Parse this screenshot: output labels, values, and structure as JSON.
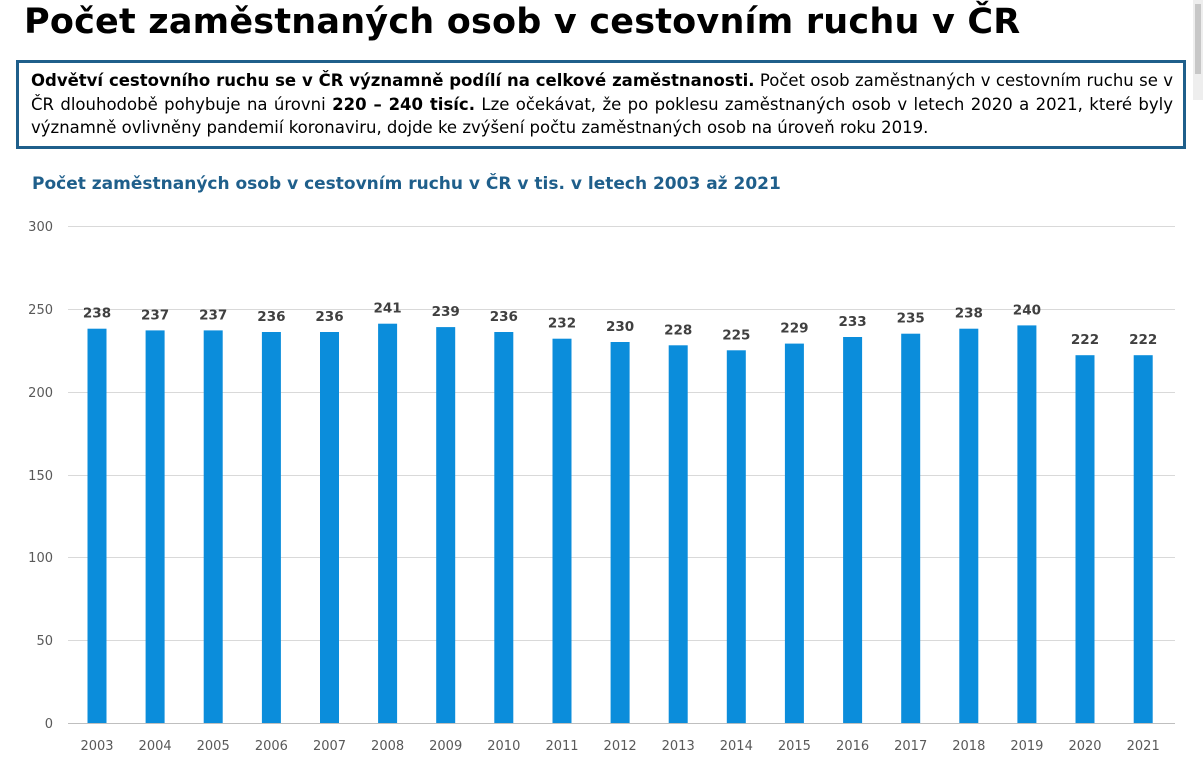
{
  "page": {
    "title": "Počet zaměstnaných osob v cestovním ruchu v ČR"
  },
  "summary": {
    "bold_intro": "Odvětví cestovního ruchu se v ČR významně podílí na celkové zaměstnanosti.",
    "text_1": " Počet osob zaměstnaných v cestovním ruchu se v ČR dlouhodobě pohybuje na úrovni ",
    "bold_range": "220 – 240 tisíc.",
    "text_2": " Lze očekávat, že po poklesu zaměstnaných osob v letech 2020 a 2021, které byly významně ovlivněny pandemií koronaviru, dojde ke zvýšení počtu zaměstnaných osob na úroveň roku 2019."
  },
  "chart_data": {
    "type": "bar",
    "title": "Počet zaměstnaných osob v cestovním ruchu v ČR v tis. v letech 2003 až 2021",
    "categories": [
      "2003",
      "2004",
      "2005",
      "2006",
      "2007",
      "2008",
      "2009",
      "2010",
      "2011",
      "2012",
      "2013",
      "2014",
      "2015",
      "2016",
      "2017",
      "2018",
      "2019",
      "2020",
      "2021"
    ],
    "values": [
      238,
      237,
      237,
      236,
      236,
      241,
      239,
      236,
      232,
      230,
      228,
      225,
      229,
      233,
      235,
      238,
      240,
      222,
      222
    ],
    "ylim": [
      0,
      300
    ],
    "yticks": [
      0,
      50,
      100,
      150,
      200,
      250,
      300
    ],
    "xlabel": "",
    "ylabel": "",
    "grid": true,
    "data_labels": true,
    "bar_color": "#0b8ddb",
    "grid_color": "#d9d9d9"
  }
}
